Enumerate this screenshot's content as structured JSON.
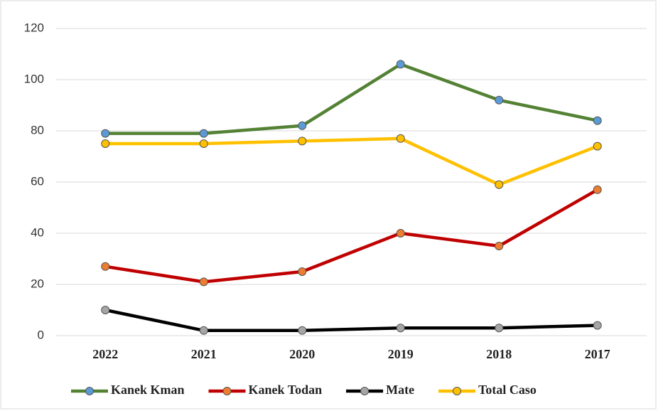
{
  "chart_data": {
    "type": "line",
    "categories": [
      "2022",
      "2021",
      "2020",
      "2019",
      "2018",
      "2017"
    ],
    "series": [
      {
        "name": "Kanek Kman",
        "color": "#548235",
        "marker_color": "#5b9bd5",
        "values": [
          79,
          79,
          82,
          106,
          92,
          84
        ]
      },
      {
        "name": "Kanek Todan",
        "color": "#c00000",
        "marker_color": "#ed7d31",
        "values": [
          27,
          21,
          25,
          40,
          35,
          57
        ]
      },
      {
        "name": "Mate",
        "color": "#000000",
        "marker_color": "#a5a5a5",
        "values": [
          10,
          2,
          2,
          3,
          3,
          4
        ]
      },
      {
        "name": "Total Caso",
        "color": "#ffc000",
        "marker_color": "#ffc000",
        "values": [
          75,
          75,
          76,
          77,
          59,
          74
        ]
      }
    ],
    "ylim": [
      0,
      120
    ],
    "yticks": [
      0,
      20,
      40,
      60,
      80,
      100,
      120
    ],
    "grid": true,
    "legend": "bottom"
  }
}
